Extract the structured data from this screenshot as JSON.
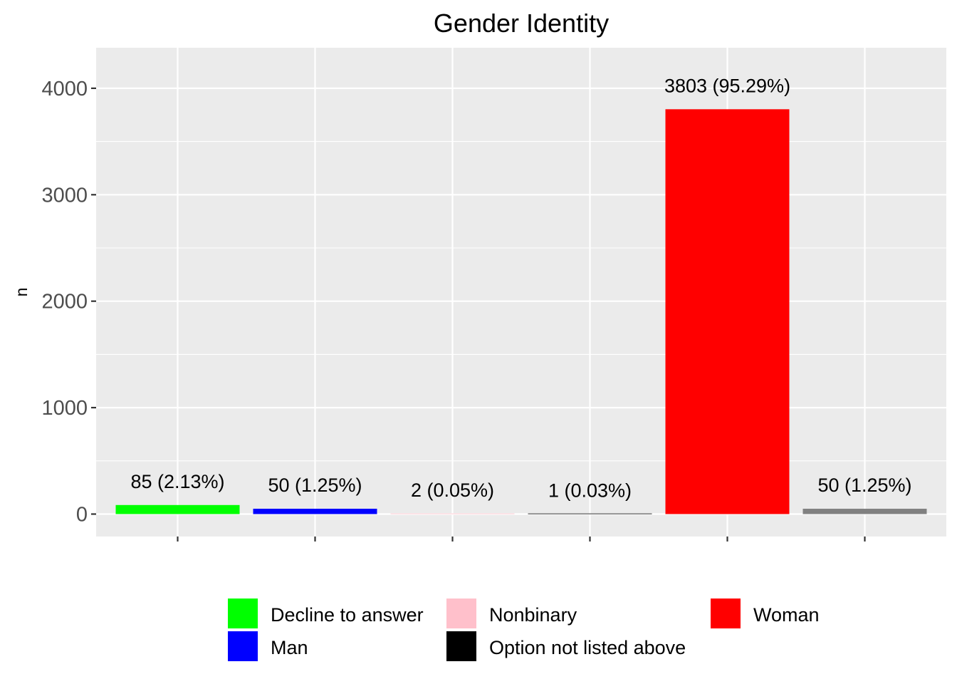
{
  "chart_data": {
    "type": "bar",
    "title": "Gender Identity",
    "xlabel": "",
    "ylabel": "n",
    "ylim": [
      0,
      4400
    ],
    "yticks": [
      0,
      1000,
      2000,
      3000,
      4000
    ],
    "ytick_labels": [
      "0",
      "1000",
      "2000",
      "3000",
      "4000"
    ],
    "grid": true,
    "legend_position": "bottom",
    "categories": [
      "Decline to answer",
      "Man",
      "Nonbinary",
      "Option not listed above",
      "Woman",
      ""
    ],
    "values": [
      85,
      50,
      2,
      1,
      3803,
      50
    ],
    "data_labels": [
      "85 (2.13%)",
      "50 (1.25%)",
      "2 (0.05%)",
      "1 (0.03%)",
      "3803 (95.29%)",
      "50 (1.25%)"
    ],
    "colors": [
      "#00ff00",
      "#0000ff",
      "#ffc0cb",
      "#000000",
      "#ff0000",
      "#808080"
    ],
    "legend": [
      {
        "label": "Decline to answer",
        "color": "#00ff00"
      },
      {
        "label": "Man",
        "color": "#0000ff"
      },
      {
        "label": "Nonbinary",
        "color": "#ffc0cb"
      },
      {
        "label": "Option not listed above",
        "color": "#000000"
      },
      {
        "label": "Woman",
        "color": "#ff0000"
      }
    ]
  },
  "theme": {
    "panel_background": "#ebebeb",
    "grid_color": "#ffffff",
    "tick_color": "#333333"
  }
}
